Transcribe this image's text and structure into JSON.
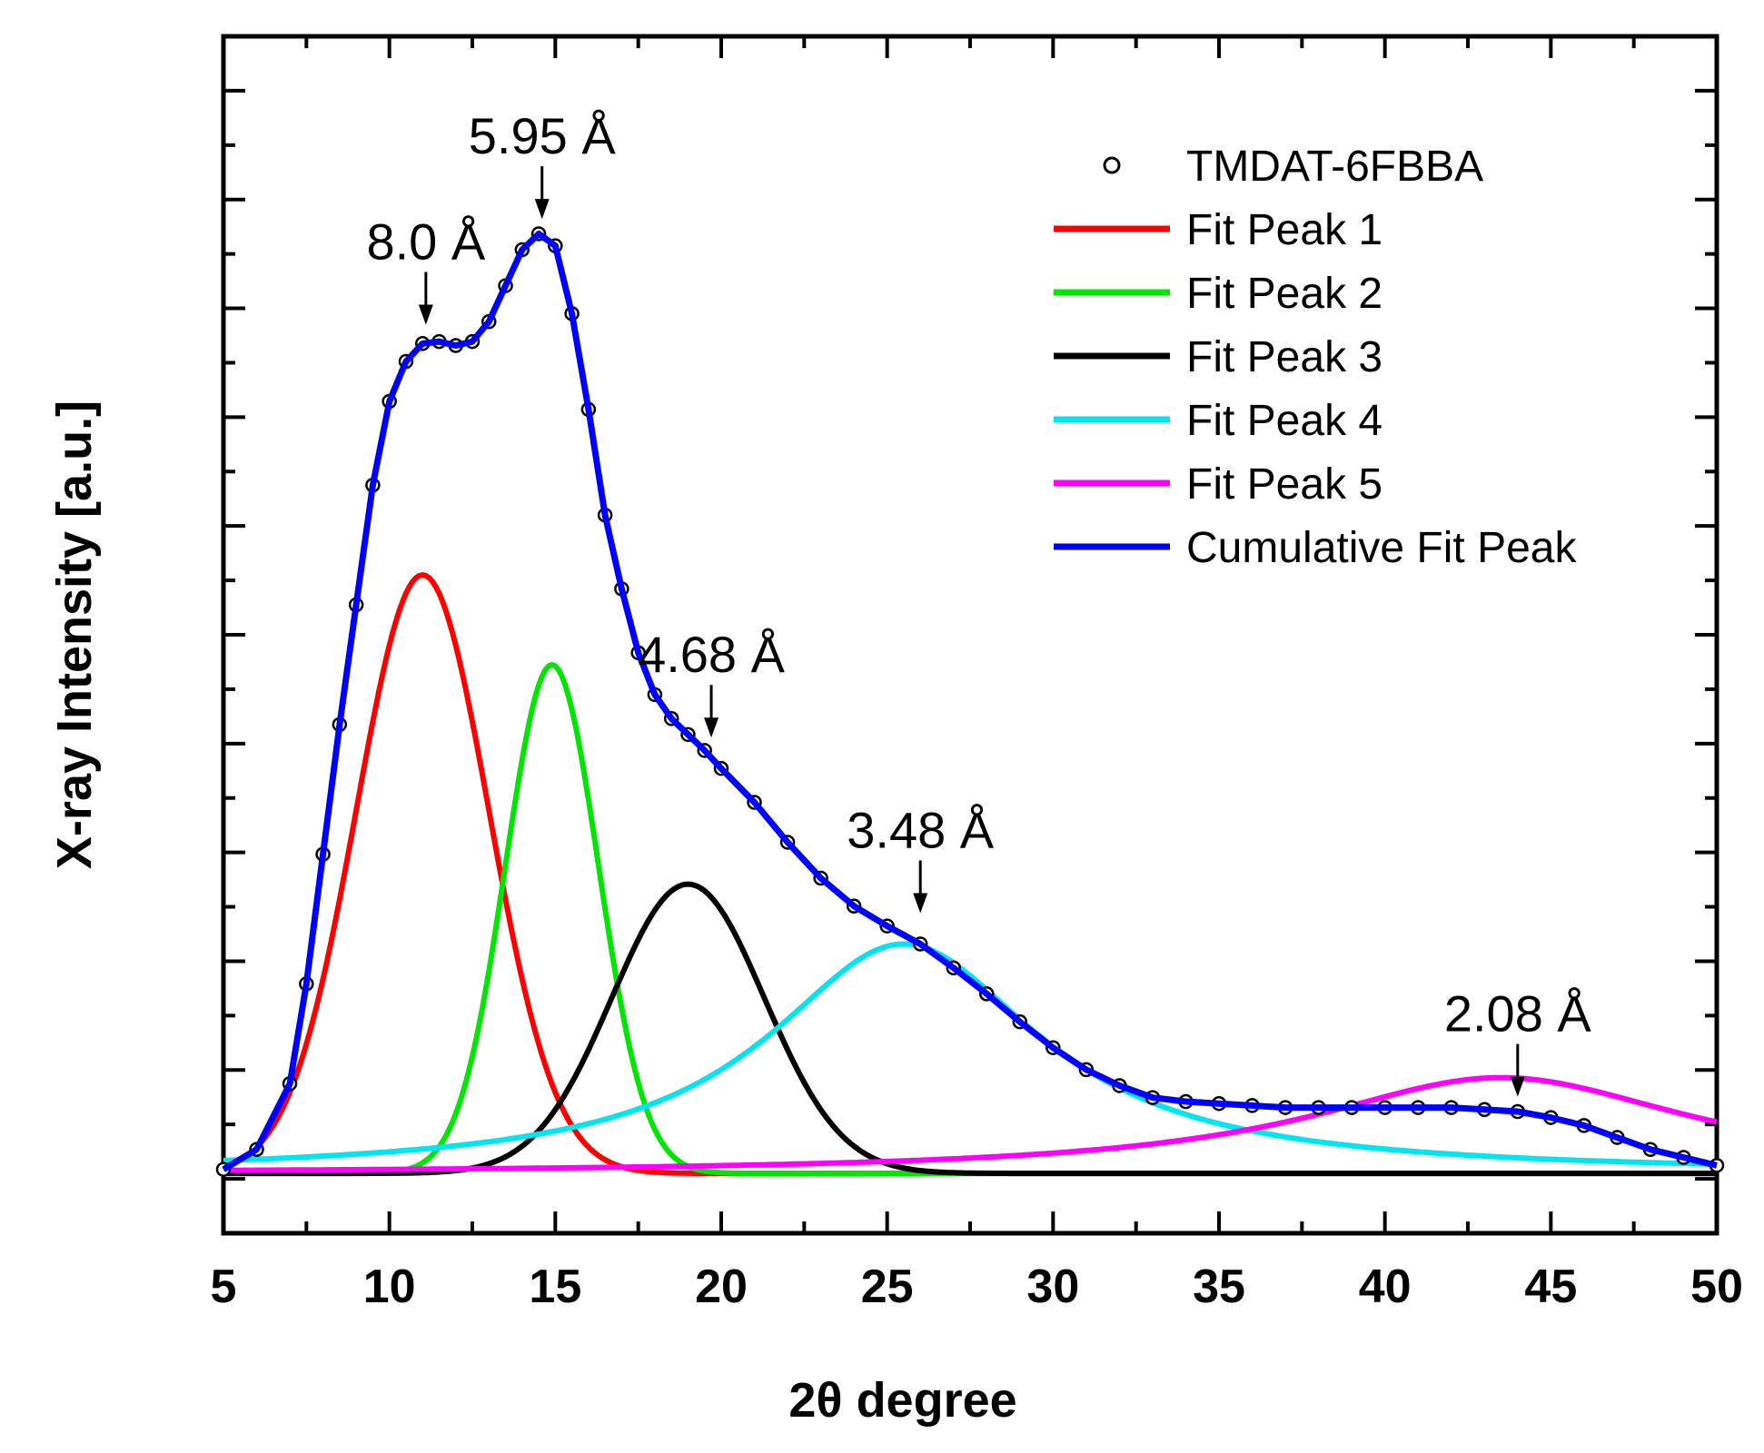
{
  "chart_data": {
    "type": "line",
    "title": "",
    "xlabel": "2θ degree",
    "ylabel": "X-ray Intensity [a.u.]",
    "xlim": [
      5,
      50
    ],
    "ylim": [
      -0.3,
      5.7
    ],
    "x_ticks": [
      5,
      10,
      15,
      20,
      25,
      30,
      35,
      40,
      45,
      50
    ],
    "x_tick_labels": [
      "5",
      "10",
      "15",
      "20",
      "25",
      "30",
      "35",
      "40",
      "45",
      "50"
    ],
    "y_tick_labels_shown": false,
    "legend_position": "top-right",
    "scatter_series": {
      "name": "TMDAT-6FBBA",
      "marker": "open-circle",
      "color": "#000000",
      "x": [
        5.0,
        6.0,
        7.0,
        7.5,
        8.0,
        8.5,
        9.0,
        9.5,
        10.0,
        10.5,
        11.0,
        11.5,
        12.0,
        12.5,
        13.0,
        13.5,
        14.0,
        14.5,
        15.0,
        15.5,
        16.0,
        16.5,
        17.0,
        17.5,
        18.0,
        18.5,
        19.0,
        19.5,
        20.0,
        21.0,
        22.0,
        23.0,
        24.0,
        25.0,
        26.0,
        27.0,
        28.0,
        29.0,
        30.0,
        31.0,
        32.0,
        33.0,
        34.0,
        35.0,
        36.0,
        37.0,
        38.0,
        39.0,
        40.0,
        41.0,
        42.0,
        43.0,
        44.0,
        45.0,
        46.0,
        47.0,
        48.0,
        49.0,
        50.0
      ],
      "y": [
        0.02,
        0.12,
        0.45,
        0.95,
        1.6,
        2.25,
        2.85,
        3.45,
        3.87,
        4.07,
        4.16,
        4.17,
        4.15,
        4.17,
        4.27,
        4.45,
        4.63,
        4.71,
        4.65,
        4.31,
        3.83,
        3.3,
        2.93,
        2.61,
        2.4,
        2.28,
        2.2,
        2.12,
        2.03,
        1.86,
        1.66,
        1.48,
        1.34,
        1.24,
        1.15,
        1.03,
        0.9,
        0.76,
        0.63,
        0.52,
        0.44,
        0.38,
        0.36,
        0.35,
        0.34,
        0.33,
        0.33,
        0.33,
        0.33,
        0.33,
        0.33,
        0.32,
        0.31,
        0.28,
        0.24,
        0.18,
        0.12,
        0.08,
        0.04
      ]
    },
    "series": [
      {
        "name": "Fit Peak 1",
        "shape": "gaussian",
        "center": 11.0,
        "height": 3.0,
        "width_sigma": 2.0,
        "color": "#ff0000"
      },
      {
        "name": "Fit Peak 2",
        "shape": "gaussian",
        "center": 14.9,
        "height": 2.55,
        "width_sigma": 1.4,
        "color": "#00e600"
      },
      {
        "name": "Fit Peak 3",
        "shape": "gaussian",
        "center": 19.0,
        "height": 1.45,
        "width_sigma": 2.3,
        "color": "#000000"
      },
      {
        "name": "Fit Peak 4",
        "shape": "lorentzian",
        "center": 25.5,
        "height": 1.15,
        "width_hwhm": 5.0,
        "color": "#00e6f0"
      },
      {
        "name": "Fit Peak 5",
        "shape": "lorentzian",
        "center": 43.5,
        "height": 0.48,
        "width_hwhm": 7.0,
        "color": "#ff00ff"
      }
    ],
    "cumulative": {
      "name": "Cumulative Fit Peak",
      "color": "#0000ff"
    },
    "legend": [
      {
        "label": "TMDAT-6FBBA",
        "kind": "marker",
        "color": "#000000"
      },
      {
        "label": "Fit Peak 1",
        "kind": "line",
        "color": "#ff0000"
      },
      {
        "label": "Fit Peak 2",
        "kind": "line",
        "color": "#00e600"
      },
      {
        "label": "Fit Peak 3",
        "kind": "line",
        "color": "#000000"
      },
      {
        "label": "Fit Peak 4",
        "kind": "line",
        "color": "#00e6f0"
      },
      {
        "label": "Fit Peak 5",
        "kind": "line",
        "color": "#ff00ff"
      },
      {
        "label": "Cumulative Fit Peak",
        "kind": "line",
        "color": "#0000ff"
      }
    ],
    "annotations": [
      {
        "text": "8.0 Å",
        "x": 11.1,
        "y": 4.2
      },
      {
        "text": "5.95 Å",
        "x": 14.6,
        "y": 4.73
      },
      {
        "text": "4.68 Å",
        "x": 19.7,
        "y": 2.13
      },
      {
        "text": "3.48 Å",
        "x": 26.0,
        "y": 1.25
      },
      {
        "text": "2.08 Å",
        "x": 44.0,
        "y": 0.33
      }
    ]
  }
}
